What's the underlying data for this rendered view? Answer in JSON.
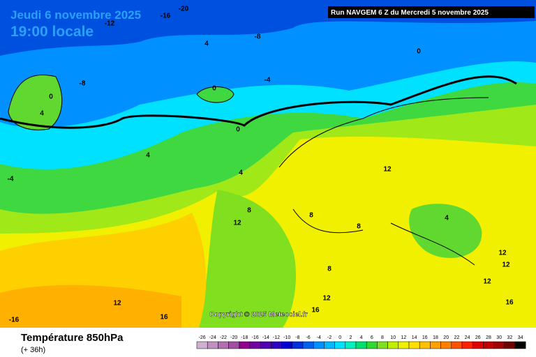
{
  "header": {
    "date": "Jeudi 6 novembre 2025",
    "time": "19:00 locale",
    "run": "Run NAVGEM 6 Z du Mercredi 5 novembre 2025"
  },
  "copyright": "Copyright © 2025 Meteociel.fr",
  "footer": {
    "title": "Température 850hPa",
    "subtitle": "(+ 36h)"
  },
  "contour_labels": [
    -16,
    -20,
    -12,
    -8,
    4,
    -8,
    0,
    4,
    -4,
    0,
    0,
    0,
    4,
    4,
    -4,
    8,
    12,
    12,
    8,
    8,
    4,
    8,
    12,
    12,
    12,
    12,
    16,
    -16,
    12,
    16,
    16
  ],
  "scale": {
    "values": [
      -26,
      -24,
      -22,
      -20,
      -18,
      -16,
      -14,
      -12,
      -10,
      -8,
      -6,
      -4,
      -2,
      0,
      2,
      4,
      6,
      8,
      10,
      12,
      14,
      16,
      18,
      20,
      22,
      24,
      26,
      28,
      30,
      32,
      34
    ],
    "colors": [
      "#d0b0d0",
      "#c090c0",
      "#b070b0",
      "#a050a0",
      "#900090",
      "#7000a0",
      "#5000b0",
      "#3000c0",
      "#0000d0",
      "#0030e0",
      "#0060f0",
      "#0090ff",
      "#00b8ff",
      "#00e0ff",
      "#00f0c0",
      "#00e070",
      "#30d830",
      "#80e020",
      "#c0f000",
      "#f0f000",
      "#ffe000",
      "#ffc000",
      "#ffa000",
      "#ff8000",
      "#ff5000",
      "#ff2000",
      "#e00000",
      "#c00000",
      "#a00000",
      "#700000",
      "#000000"
    ]
  }
}
